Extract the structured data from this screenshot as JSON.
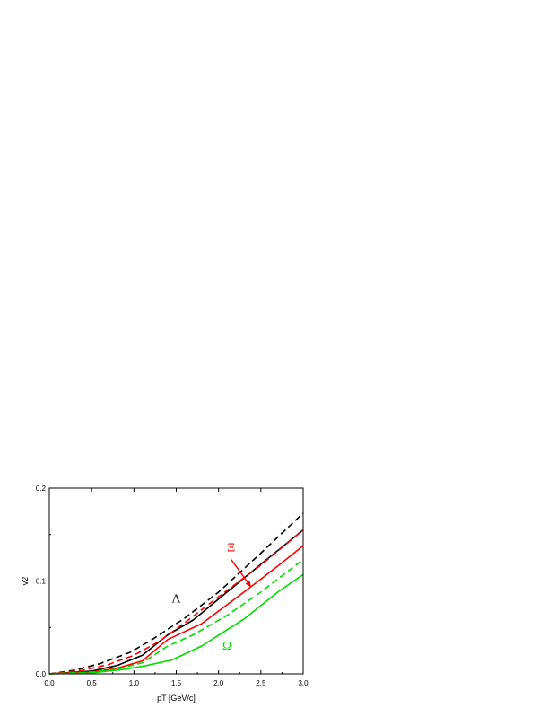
{
  "chart_data": {
    "type": "line",
    "title": "",
    "xlabel": "pT [GeV/c]",
    "ylabel": "v2",
    "xlim": [
      0.0,
      3.0
    ],
    "ylim": [
      0.0,
      0.2
    ],
    "xticks": [
      "0.0",
      "0.5",
      "1.0",
      "1.5",
      "2.0",
      "2.5",
      "3.0"
    ],
    "yticks": [
      "0.0",
      "0.1",
      "0.2"
    ],
    "grid": false,
    "legend": "none",
    "series": [
      {
        "color": "#000000",
        "dashed": true,
        "x": [
          0.0,
          0.3,
          0.6,
          0.95,
          1.2,
          1.6,
          2.0,
          2.5,
          3.0
        ],
        "y": [
          0.0,
          0.004,
          0.011,
          0.023,
          0.036,
          0.06,
          0.088,
          0.13,
          0.173
        ]
      },
      {
        "color": "#000000",
        "dashed": false,
        "x": [
          0.0,
          0.5,
          0.8,
          1.1,
          1.4,
          1.7,
          2.1,
          2.5,
          3.0
        ],
        "y": [
          0.0,
          0.003,
          0.009,
          0.02,
          0.042,
          0.058,
          0.088,
          0.118,
          0.155
        ]
      },
      {
        "color": "#ff0000",
        "dashed": true,
        "x": [
          0.0,
          0.4,
          0.7,
          1.0,
          1.3,
          1.6,
          2.0,
          2.5,
          3.0
        ],
        "y": [
          0.0,
          0.004,
          0.01,
          0.02,
          0.035,
          0.055,
          0.083,
          0.117,
          0.155
        ]
      },
      {
        "color": "#ff0000",
        "dashed": false,
        "x": [
          0.0,
          0.5,
          0.8,
          1.1,
          1.4,
          1.8,
          2.3,
          2.7,
          3.0
        ],
        "y": [
          0.0,
          0.002,
          0.006,
          0.014,
          0.037,
          0.054,
          0.088,
          0.116,
          0.138
        ]
      },
      {
        "color": "#00dd00",
        "dashed": true,
        "x": [
          0.0,
          0.5,
          0.8,
          1.1,
          1.4,
          1.7,
          2.1,
          2.5,
          3.0
        ],
        "y": [
          0.0,
          0.002,
          0.005,
          0.012,
          0.03,
          0.042,
          0.063,
          0.088,
          0.123
        ]
      },
      {
        "color": "#00dd00",
        "dashed": false,
        "x": [
          0.0,
          0.5,
          0.9,
          1.15,
          1.45,
          1.8,
          2.3,
          2.7,
          3.0
        ],
        "y": [
          0.0,
          0.001,
          0.005,
          0.009,
          0.015,
          0.03,
          0.059,
          0.088,
          0.107
        ]
      }
    ],
    "annotations": [
      {
        "text": "Λ",
        "x": 1.5,
        "y": 0.077,
        "color": "#000000"
      },
      {
        "text": "Ξ",
        "x": 2.15,
        "y": 0.132,
        "color": "#ff0000"
      },
      {
        "text": "Ω",
        "x": 2.1,
        "y": 0.026,
        "color": "#00dd00"
      }
    ],
    "arrow": {
      "color": "#ff0000",
      "from": [
        2.15,
        0.123
      ],
      "to": [
        2.38,
        0.094
      ]
    }
  }
}
